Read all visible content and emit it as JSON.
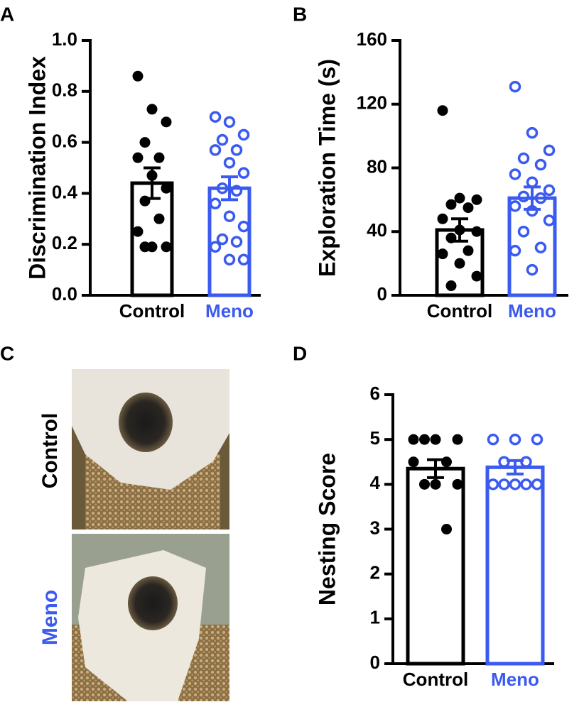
{
  "chart_data": [
    {
      "type": "bar",
      "label": "A",
      "ylabel": "Discrimination Index",
      "categories": [
        "Control",
        "Meno"
      ],
      "colors": [
        "#000000",
        "#3b5bf0"
      ],
      "values": [
        0.44,
        0.42
      ],
      "errors": [
        0.06,
        0.045
      ],
      "points": [
        [
          0.86,
          0.73,
          0.68,
          0.6,
          0.54,
          0.54,
          0.47,
          0.42,
          0.37,
          0.3,
          0.25,
          0.19,
          0.19,
          0.19
        ],
        [
          0.7,
          0.68,
          0.63,
          0.61,
          0.57,
          0.57,
          0.52,
          0.48,
          0.42,
          0.41,
          0.36,
          0.31,
          0.27,
          0.22,
          0.21,
          0.19,
          0.14,
          0.14
        ]
      ],
      "ylim": [
        0,
        1
      ],
      "yticks": [
        {
          "value": 0,
          "label": "0.0"
        },
        {
          "value": 0.2,
          "label": "0.2"
        },
        {
          "value": 0.4,
          "label": "0.4"
        },
        {
          "value": 0.6,
          "label": "0.6"
        },
        {
          "value": 0.8,
          "label": "0.8"
        },
        {
          "value": 1,
          "label": "1.0"
        }
      ]
    },
    {
      "type": "bar",
      "label": "B",
      "ylabel": "Exploration Time (s)",
      "categories": [
        "Control",
        "Meno"
      ],
      "colors": [
        "#000000",
        "#3b5bf0"
      ],
      "values": [
        41,
        61
      ],
      "errors": [
        7,
        7
      ],
      "points": [
        [
          116,
          61,
          60,
          57,
          55,
          48,
          41,
          40,
          36,
          28,
          26,
          20,
          12,
          6
        ],
        [
          131,
          102,
          91,
          86,
          82,
          76,
          71,
          66,
          62,
          61,
          56,
          53,
          47,
          40,
          30,
          28,
          16
        ]
      ],
      "ylim": [
        0,
        160
      ],
      "yticks": [
        0,
        40,
        80,
        120,
        160
      ]
    },
    {
      "type": "bar",
      "label": "D",
      "ylabel": "Nesting Score",
      "categories": [
        "Control",
        "Meno"
      ],
      "colors": [
        "#000000",
        "#3b5bf0"
      ],
      "values": [
        4.35,
        4.38
      ],
      "errors": [
        0.2,
        0.15
      ],
      "points": [
        [
          5,
          5,
          5,
          5,
          4.5,
          4.5,
          4,
          4,
          4,
          3
        ],
        [
          5,
          5,
          5,
          4.5,
          4.5,
          4,
          4,
          4,
          4,
          4
        ]
      ],
      "ylim": [
        0,
        6
      ],
      "yticks": [
        0,
        1,
        2,
        3,
        4,
        5,
        6
      ]
    }
  ],
  "photos": {
    "label": "C",
    "rows": [
      "Control",
      "Meno"
    ]
  }
}
